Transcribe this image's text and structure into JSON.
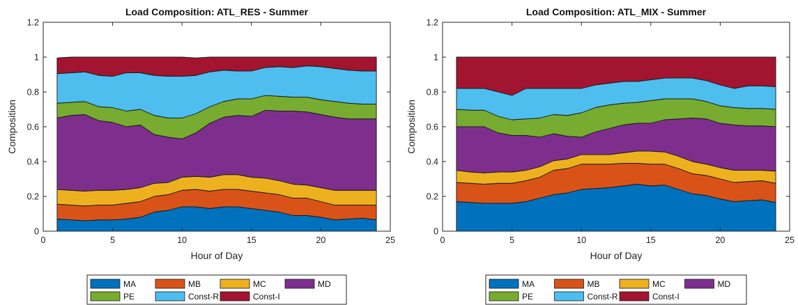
{
  "chart_data": [
    {
      "type": "area",
      "stacked": true,
      "title": "Load Composition: ATL_RES - Summer",
      "xlabel": "Hour of Day",
      "ylabel": "Composition",
      "xlim": [
        0,
        25
      ],
      "ylim": [
        0,
        1.2
      ],
      "xticks": [
        "0",
        "5",
        "10",
        "15",
        "20",
        "25"
      ],
      "yticks": [
        "0",
        "0.2",
        "0.4",
        "0.6",
        "0.8",
        "1",
        "1.2"
      ],
      "grid": false,
      "legend_position": "bottom",
      "x": [
        1,
        2,
        3,
        4,
        5,
        6,
        7,
        8,
        9,
        10,
        11,
        12,
        13,
        14,
        15,
        16,
        17,
        18,
        19,
        20,
        21,
        22,
        23,
        24
      ],
      "series": [
        {
          "name": "MA",
          "color": "#0072BD",
          "values": [
            0.07,
            0.065,
            0.06,
            0.065,
            0.065,
            0.07,
            0.08,
            0.11,
            0.12,
            0.14,
            0.14,
            0.13,
            0.14,
            0.14,
            0.13,
            0.12,
            0.11,
            0.09,
            0.09,
            0.08,
            0.065,
            0.07,
            0.075,
            0.065
          ]
        },
        {
          "name": "MB",
          "color": "#D95319",
          "values": [
            0.085,
            0.085,
            0.085,
            0.085,
            0.085,
            0.09,
            0.09,
            0.09,
            0.09,
            0.095,
            0.1,
            0.1,
            0.1,
            0.1,
            0.1,
            0.1,
            0.1,
            0.1,
            0.1,
            0.09,
            0.085,
            0.08,
            0.075,
            0.085
          ]
        },
        {
          "name": "MC",
          "color": "#EDB120",
          "values": [
            0.085,
            0.085,
            0.085,
            0.085,
            0.085,
            0.08,
            0.08,
            0.075,
            0.07,
            0.075,
            0.075,
            0.08,
            0.085,
            0.085,
            0.08,
            0.085,
            0.08,
            0.08,
            0.075,
            0.08,
            0.085,
            0.085,
            0.085,
            0.085
          ]
        },
        {
          "name": "MD",
          "color": "#7E2F8E",
          "values": [
            0.41,
            0.43,
            0.44,
            0.4,
            0.39,
            0.36,
            0.36,
            0.28,
            0.26,
            0.22,
            0.25,
            0.31,
            0.33,
            0.34,
            0.35,
            0.39,
            0.4,
            0.42,
            0.42,
            0.42,
            0.42,
            0.41,
            0.41,
            0.41
          ]
        },
        {
          "name": "PE",
          "color": "#77AC30",
          "values": [
            0.085,
            0.075,
            0.075,
            0.08,
            0.085,
            0.09,
            0.09,
            0.11,
            0.11,
            0.12,
            0.11,
            0.095,
            0.09,
            0.095,
            0.1,
            0.085,
            0.085,
            0.08,
            0.085,
            0.085,
            0.09,
            0.09,
            0.085,
            0.085
          ]
        },
        {
          "name": "Const-R",
          "color": "#4DBEEE",
          "values": [
            0.17,
            0.17,
            0.17,
            0.18,
            0.18,
            0.22,
            0.21,
            0.23,
            0.24,
            0.24,
            0.22,
            0.2,
            0.18,
            0.16,
            0.16,
            0.16,
            0.17,
            0.17,
            0.18,
            0.19,
            0.19,
            0.19,
            0.19,
            0.19
          ]
        },
        {
          "name": "Const-I",
          "color": "#A2142F",
          "values": [
            0.09,
            0.09,
            0.085,
            0.105,
            0.11,
            0.09,
            0.09,
            0.105,
            0.11,
            0.11,
            0.1,
            0.085,
            0.075,
            0.08,
            0.08,
            0.06,
            0.055,
            0.06,
            0.05,
            0.055,
            0.065,
            0.075,
            0.08,
            0.08
          ]
        }
      ]
    },
    {
      "type": "area",
      "stacked": true,
      "title": "Load Composition: ATL_MIX - Summer",
      "xlabel": "Hour of Day",
      "ylabel": "Composition",
      "xlim": [
        0,
        25
      ],
      "ylim": [
        0,
        1.2
      ],
      "xticks": [
        "0",
        "5",
        "10",
        "15",
        "20",
        "25"
      ],
      "yticks": [
        "0",
        "0.2",
        "0.4",
        "0.6",
        "0.8",
        "1",
        "1.2"
      ],
      "grid": false,
      "legend_position": "bottom",
      "x": [
        1,
        2,
        3,
        4,
        5,
        6,
        7,
        8,
        9,
        10,
        11,
        12,
        13,
        14,
        15,
        16,
        17,
        18,
        19,
        20,
        21,
        22,
        23,
        24
      ],
      "series": [
        {
          "name": "MA",
          "color": "#0072BD",
          "values": [
            0.17,
            0.165,
            0.16,
            0.16,
            0.16,
            0.17,
            0.19,
            0.21,
            0.22,
            0.24,
            0.245,
            0.25,
            0.26,
            0.27,
            0.26,
            0.265,
            0.24,
            0.215,
            0.205,
            0.185,
            0.17,
            0.175,
            0.18,
            0.165
          ]
        },
        {
          "name": "MB",
          "color": "#D95319",
          "values": [
            0.11,
            0.11,
            0.11,
            0.115,
            0.115,
            0.12,
            0.12,
            0.14,
            0.14,
            0.145,
            0.14,
            0.135,
            0.13,
            0.12,
            0.125,
            0.12,
            0.12,
            0.115,
            0.115,
            0.115,
            0.11,
            0.11,
            0.11,
            0.11
          ]
        },
        {
          "name": "MC",
          "color": "#EDB120",
          "values": [
            0.07,
            0.065,
            0.065,
            0.065,
            0.065,
            0.06,
            0.06,
            0.055,
            0.055,
            0.055,
            0.055,
            0.055,
            0.06,
            0.07,
            0.075,
            0.07,
            0.07,
            0.07,
            0.065,
            0.065,
            0.07,
            0.065,
            0.06,
            0.07
          ]
        },
        {
          "name": "MD",
          "color": "#7E2F8E",
          "values": [
            0.25,
            0.26,
            0.265,
            0.225,
            0.21,
            0.2,
            0.17,
            0.155,
            0.13,
            0.1,
            0.13,
            0.15,
            0.16,
            0.16,
            0.16,
            0.185,
            0.215,
            0.25,
            0.26,
            0.255,
            0.26,
            0.255,
            0.255,
            0.255
          ]
        },
        {
          "name": "PE",
          "color": "#77AC30",
          "values": [
            0.1,
            0.095,
            0.095,
            0.095,
            0.09,
            0.095,
            0.11,
            0.11,
            0.12,
            0.14,
            0.14,
            0.135,
            0.125,
            0.12,
            0.13,
            0.12,
            0.115,
            0.11,
            0.1,
            0.1,
            0.1,
            0.1,
            0.1,
            0.1
          ]
        },
        {
          "name": "Const-R",
          "color": "#4DBEEE",
          "values": [
            0.12,
            0.125,
            0.125,
            0.14,
            0.14,
            0.175,
            0.17,
            0.15,
            0.155,
            0.14,
            0.13,
            0.125,
            0.125,
            0.12,
            0.12,
            0.12,
            0.12,
            0.12,
            0.12,
            0.12,
            0.11,
            0.13,
            0.13,
            0.13
          ]
        },
        {
          "name": "Const-I",
          "color": "#A2142F",
          "values": [
            0.18,
            0.18,
            0.18,
            0.2,
            0.22,
            0.18,
            0.18,
            0.18,
            0.18,
            0.18,
            0.16,
            0.15,
            0.14,
            0.14,
            0.13,
            0.12,
            0.12,
            0.12,
            0.135,
            0.16,
            0.18,
            0.165,
            0.165,
            0.17
          ]
        }
      ]
    }
  ]
}
